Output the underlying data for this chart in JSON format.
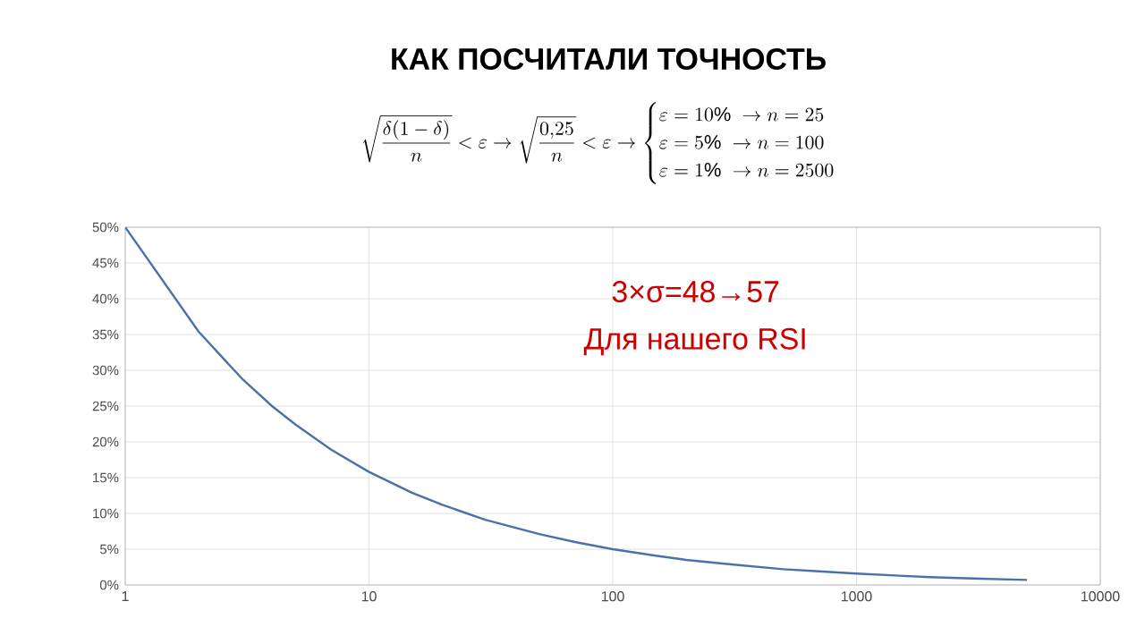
{
  "chart_data": {
    "type": "line",
    "title": "КАК ПОСЧИТАЛИ ТОЧНОСТЬ",
    "annotations": [
      "\\sqrt{\\frac{\\delta(1-\\delta)}{n}}<\\varepsilon\\rightarrow\\sqrt{\\frac{0{,}25}{n}}<\\varepsilon\\rightarrow\\begin{cases}\\varepsilon=10\\%\\ \\rightarrow n=25\\\\ \\varepsilon=5\\%\\ \\rightarrow n=100\\\\ \\varepsilon=1\\%\\ \\rightarrow n=2500\\end{cases}",
      "3×σ=48→57",
      "Для нашего RSI"
    ],
    "x": [
      1,
      2,
      3,
      4,
      5,
      7,
      10,
      15,
      20,
      30,
      50,
      70,
      100,
      150,
      200,
      300,
      500,
      700,
      1000,
      1500,
      2000,
      3000,
      5000
    ],
    "series": [
      {
        "color": "#4a72a8",
        "values": [
          50,
          35.4,
          28.9,
          25,
          22.4,
          18.9,
          15.8,
          12.9,
          11.2,
          9.1,
          7.1,
          6,
          5,
          4.1,
          3.5,
          2.9,
          2.2,
          1.9,
          1.6,
          1.3,
          1.1,
          0.9,
          0.7
        ]
      }
    ],
    "log": "x",
    "xlim": [
      1,
      10000
    ],
    "xticks": [
      1,
      10,
      100,
      1000,
      10000
    ],
    "ylim": [
      0,
      50
    ],
    "yticks": [
      {
        "value": 0,
        "label": "0%"
      },
      {
        "value": 5,
        "label": "5%"
      },
      {
        "value": 10,
        "label": "10%"
      },
      {
        "value": 15,
        "label": "15%"
      },
      {
        "value": 20,
        "label": "20%"
      },
      {
        "value": 25,
        "label": "25%"
      },
      {
        "value": 30,
        "label": "30%"
      },
      {
        "value": 35,
        "label": "35%"
      },
      {
        "value": 40,
        "label": "40%"
      },
      {
        "value": 45,
        "label": "45%"
      },
      {
        "value": 50,
        "label": "50%"
      }
    ],
    "grid": true,
    "marker": "none",
    "line_style": "solid"
  }
}
